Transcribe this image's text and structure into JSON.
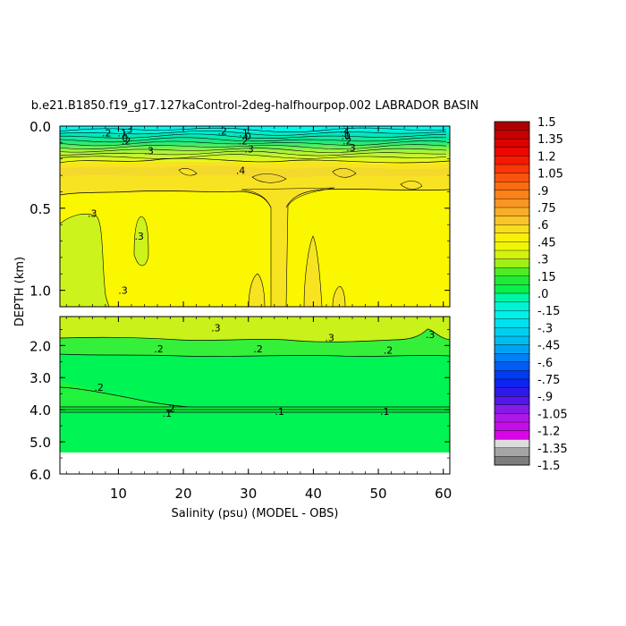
{
  "chart_data": {
    "type": "heatmap",
    "title": "b.e21.B1850.f19_g17.127kaControl-2deg-halfhourpop.002 LABRADOR BASIN",
    "xlabel": "Salinity (psu) (MODEL - OBS)",
    "ylabel": "DEPTH (km)",
    "xlim": [
      1,
      61
    ],
    "x_ticks": [
      "10",
      "20",
      "30",
      "40",
      "50",
      "60"
    ],
    "upper_panel": {
      "ylim": [
        0,
        1.1
      ],
      "y_ticks": [
        "0.0",
        "0.5",
        "1.0"
      ]
    },
    "lower_panel": {
      "ylim": [
        1.1,
        6.0
      ],
      "y_ticks": [
        "2.0",
        "3.0",
        "4.0",
        "5.0",
        "6.0"
      ]
    },
    "contour_labels": [
      {
        "text": ".3",
        "x": 11.5,
        "z": 0.02
      },
      {
        "text": ".2",
        "x": 8.2,
        "z": 0.04
      },
      {
        "text": ".1",
        "x": 10.6,
        "z": 0.04
      },
      {
        "text": "0",
        "x": 11.0,
        "z": 0.07
      },
      {
        "text": ".2",
        "x": 11.2,
        "z": 0.09
      },
      {
        "text": ".2",
        "x": 26.0,
        "z": 0.03
      },
      {
        "text": ".1",
        "x": 29.3,
        "z": 0.04
      },
      {
        "text": ".0",
        "x": 29.7,
        "z": 0.06
      },
      {
        "text": ".2",
        "x": 29.2,
        "z": 0.09
      },
      {
        "text": ".3",
        "x": 30.1,
        "z": 0.14
      },
      {
        "text": ".2",
        "x": 44.8,
        "z": 0.02
      },
      {
        "text": ".1",
        "x": 45.0,
        "z": 0.04
      },
      {
        "text": ".0",
        "x": 45.0,
        "z": 0.06
      },
      {
        "text": ".2",
        "x": 45.2,
        "z": 0.09
      },
      {
        "text": ".3",
        "x": 45.8,
        "z": 0.13
      },
      {
        "text": ".3",
        "x": 14.7,
        "z": 0.15
      },
      {
        "text": ".4",
        "x": 28.8,
        "z": 0.27
      },
      {
        "text": ".3",
        "x": 6.0,
        "z": 0.53
      },
      {
        "text": ".3",
        "x": 13.2,
        "z": 0.67
      },
      {
        "text": ".3",
        "x": 10.7,
        "z": 1.0
      },
      {
        "text": ".3",
        "x": 25.0,
        "z": 1.45
      },
      {
        "text": ".3",
        "x": 42.5,
        "z": 1.75
      },
      {
        "text": ".3",
        "x": 58.0,
        "z": 1.65
      },
      {
        "text": ".2",
        "x": 16.2,
        "z": 2.1
      },
      {
        "text": ".2",
        "x": 31.5,
        "z": 2.1
      },
      {
        "text": ".2",
        "x": 51.5,
        "z": 2.15
      },
      {
        "text": ".2",
        "x": 7.0,
        "z": 3.3
      },
      {
        "text": ".2",
        "x": 18.0,
        "z": 3.95
      },
      {
        "text": ".1",
        "x": 17.5,
        "z": 4.1
      },
      {
        "text": ".1",
        "x": 34.8,
        "z": 4.05
      },
      {
        "text": ".1",
        "x": 51.0,
        "z": 4.05
      }
    ],
    "colorbar": {
      "min": -1.5,
      "max": 1.5,
      "step": 0.075,
      "labels": [
        "1.5",
        "1.35",
        "1.2",
        "1.05",
        ".9",
        ".75",
        ".6",
        ".45",
        ".3",
        ".15",
        ".0",
        "-.15",
        "-.3",
        "-.45",
        "-.6",
        "-.75",
        "-.9",
        "-1.05",
        "-1.2",
        "-1.35",
        "-1.5"
      ]
    }
  }
}
